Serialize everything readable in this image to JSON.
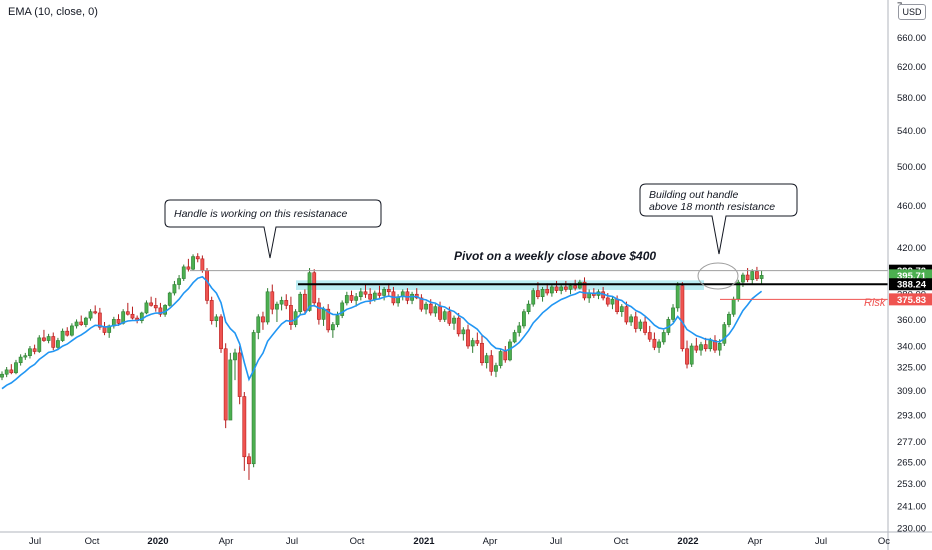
{
  "indicator_label": "EMA (10, close, 0)",
  "currency": "USD",
  "colors": {
    "up": "#26a69a",
    "up_fill": "#4caf50",
    "down": "#ef5350",
    "ema": "#2196f3",
    "axis_text": "#131722",
    "grid": "#e0e3eb",
    "zone": "#b2ebf2",
    "risk": "#ef5350"
  },
  "annotations": {
    "left_callout": "Handle is working on this resistanace",
    "right_callout_line1": "Building out handle",
    "right_callout_line2": "above 18 month resistance",
    "pivot_text": "Pivot on a weekly close above $400",
    "risk_text": "Risk"
  },
  "chart_data": {
    "type": "candlestick",
    "y_scale": "log",
    "ylim": [
      228,
      715
    ],
    "y_ticks": [
      230.0,
      241.0,
      253.0,
      265.0,
      277.0,
      293.0,
      309.0,
      325.0,
      340.0,
      360.0,
      380.0,
      400.0,
      420.0,
      460.0,
      500.0,
      540.0,
      580.0,
      620.0,
      660.0
    ],
    "y_top_tick_partial": "7",
    "x_ticks": [
      "Jul",
      "Oct",
      "2020",
      "Apr",
      "Jul",
      "Oct",
      "2021",
      "Apr",
      "Jul",
      "Oct",
      "2022",
      "Apr",
      "Jul",
      "Oc"
    ],
    "x_ticks_bold": [
      "2020",
      "2021",
      "2022"
    ],
    "price_labels": [
      {
        "value": "399.72",
        "kind": "black"
      },
      {
        "value": "395.71",
        "kind": "green"
      },
      {
        "value": "388.24",
        "kind": "black"
      },
      {
        "value": "375.83",
        "kind": "red"
      }
    ],
    "levels": {
      "pivot": 399.72,
      "resistance": 388.24,
      "risk": 375.83,
      "last_close": 395.71,
      "zone": [
        383.5,
        391.5
      ]
    },
    "candles": [
      [
        318,
        322,
        316,
        320
      ],
      [
        320,
        325,
        318,
        323
      ],
      [
        323,
        327,
        320,
        321
      ],
      [
        321,
        330,
        320,
        328
      ],
      [
        328,
        334,
        326,
        332
      ],
      [
        332,
        335,
        330,
        333
      ],
      [
        333,
        340,
        331,
        338
      ],
      [
        338,
        341,
        334,
        336
      ],
      [
        336,
        348,
        335,
        346
      ],
      [
        346,
        352,
        343,
        344
      ],
      [
        344,
        349,
        342,
        347
      ],
      [
        347,
        350,
        337,
        339
      ],
      [
        339,
        346,
        337,
        344
      ],
      [
        344,
        353,
        343,
        351
      ],
      [
        351,
        354,
        347,
        348
      ],
      [
        348,
        357,
        347,
        355
      ],
      [
        355,
        360,
        353,
        358
      ],
      [
        358,
        363,
        355,
        356
      ],
      [
        356,
        362,
        354,
        361
      ],
      [
        361,
        368,
        359,
        366
      ],
      [
        366,
        371,
        364,
        365
      ],
      [
        365,
        369,
        352,
        354
      ],
      [
        354,
        358,
        348,
        350
      ],
      [
        350,
        356,
        346,
        355
      ],
      [
        355,
        362,
        353,
        360
      ],
      [
        360,
        364,
        355,
        357
      ],
      [
        357,
        368,
        356,
        366
      ],
      [
        366,
        373,
        363,
        364
      ],
      [
        364,
        370,
        360,
        361
      ],
      [
        361,
        363,
        357,
        359
      ],
      [
        359,
        366,
        357,
        365
      ],
      [
        365,
        375,
        364,
        373
      ],
      [
        373,
        378,
        370,
        371
      ],
      [
        371,
        377,
        366,
        369
      ],
      [
        369,
        373,
        362,
        364
      ],
      [
        364,
        372,
        362,
        371
      ],
      [
        371,
        382,
        370,
        381
      ],
      [
        381,
        391,
        379,
        388
      ],
      [
        388,
        396,
        384,
        393
      ],
      [
        393,
        405,
        391,
        403
      ],
      [
        403,
        410,
        399,
        401
      ],
      [
        401,
        414,
        400,
        412
      ],
      [
        412,
        415,
        407,
        410
      ],
      [
        410,
        413,
        398,
        400
      ],
      [
        400,
        402,
        372,
        375
      ],
      [
        375,
        378,
        356,
        359
      ],
      [
        359,
        364,
        354,
        362
      ],
      [
        362,
        364,
        335,
        338
      ],
      [
        338,
        342,
        285,
        290
      ],
      [
        290,
        335,
        290,
        330
      ],
      [
        330,
        338,
        316,
        335
      ],
      [
        335,
        340,
        300,
        305
      ],
      [
        305,
        308,
        260,
        268
      ],
      [
        268,
        270,
        255,
        264
      ],
      [
        264,
        352,
        262,
        350
      ],
      [
        350,
        364,
        345,
        362
      ],
      [
        362,
        366,
        352,
        358
      ],
      [
        358,
        385,
        356,
        382
      ],
      [
        382,
        388,
        364,
        368
      ],
      [
        368,
        374,
        358,
        372
      ],
      [
        372,
        378,
        367,
        375
      ],
      [
        375,
        380,
        368,
        371
      ],
      [
        371,
        378,
        352,
        356
      ],
      [
        356,
        368,
        354,
        366
      ],
      [
        366,
        382,
        364,
        380
      ],
      [
        380,
        384,
        364,
        367
      ],
      [
        367,
        402,
        366,
        398
      ],
      [
        398,
        401,
        370,
        373
      ],
      [
        373,
        377,
        356,
        360
      ],
      [
        360,
        370,
        355,
        368
      ],
      [
        368,
        372,
        350,
        352
      ],
      [
        352,
        358,
        346,
        356
      ],
      [
        356,
        366,
        354,
        363
      ],
      [
        363,
        375,
        361,
        373
      ],
      [
        373,
        382,
        371,
        379
      ],
      [
        379,
        383,
        373,
        375
      ],
      [
        375,
        381,
        370,
        378
      ],
      [
        378,
        385,
        375,
        382
      ],
      [
        382,
        388,
        377,
        380
      ],
      [
        380,
        385,
        372,
        376
      ],
      [
        376,
        383,
        374,
        381
      ],
      [
        381,
        387,
        377,
        379
      ],
      [
        379,
        386,
        375,
        384
      ],
      [
        384,
        389,
        378,
        382
      ],
      [
        382,
        386,
        371,
        373
      ],
      [
        373,
        380,
        370,
        378
      ],
      [
        378,
        384,
        375,
        382
      ],
      [
        382,
        385,
        372,
        375
      ],
      [
        375,
        382,
        372,
        380
      ],
      [
        380,
        385,
        376,
        377
      ],
      [
        377,
        380,
        366,
        368
      ],
      [
        368,
        374,
        364,
        372
      ],
      [
        372,
        376,
        363,
        365
      ],
      [
        365,
        372,
        362,
        370
      ],
      [
        370,
        374,
        358,
        360
      ],
      [
        360,
        368,
        358,
        366
      ],
      [
        366,
        370,
        355,
        357
      ],
      [
        357,
        363,
        352,
        361
      ],
      [
        361,
        365,
        347,
        349
      ],
      [
        349,
        354,
        344,
        352
      ],
      [
        352,
        356,
        338,
        340
      ],
      [
        340,
        346,
        335,
        344
      ],
      [
        344,
        350,
        340,
        342
      ],
      [
        342,
        348,
        326,
        328
      ],
      [
        328,
        335,
        324,
        333
      ],
      [
        333,
        337,
        319,
        322
      ],
      [
        322,
        328,
        318,
        326
      ],
      [
        326,
        338,
        324,
        336
      ],
      [
        336,
        340,
        328,
        330
      ],
      [
        330,
        345,
        329,
        343
      ],
      [
        343,
        352,
        342,
        350
      ],
      [
        350,
        358,
        347,
        355
      ],
      [
        355,
        368,
        353,
        366
      ],
      [
        366,
        375,
        364,
        372
      ],
      [
        372,
        385,
        370,
        383
      ],
      [
        383,
        390,
        376,
        378
      ],
      [
        378,
        386,
        374,
        384
      ],
      [
        384,
        389,
        379,
        381
      ],
      [
        381,
        388,
        378,
        386
      ],
      [
        386,
        391,
        381,
        383
      ],
      [
        383,
        388,
        380,
        386
      ],
      [
        386,
        391,
        382,
        384
      ],
      [
        384,
        389,
        380,
        387
      ],
      [
        387,
        392,
        383,
        385
      ],
      [
        385,
        392,
        384,
        390
      ],
      [
        390,
        394,
        375,
        377
      ],
      [
        377,
        384,
        373,
        381
      ],
      [
        381,
        385,
        377,
        379
      ],
      [
        379,
        384,
        376,
        382
      ],
      [
        382,
        386,
        375,
        377
      ],
      [
        377,
        381,
        370,
        372
      ],
      [
        372,
        378,
        368,
        376
      ],
      [
        376,
        379,
        364,
        366
      ],
      [
        366,
        372,
        362,
        370
      ],
      [
        370,
        374,
        356,
        358
      ],
      [
        358,
        364,
        355,
        362
      ],
      [
        362,
        366,
        350,
        353
      ],
      [
        353,
        360,
        351,
        358
      ],
      [
        358,
        362,
        348,
        350
      ],
      [
        350,
        355,
        343,
        345
      ],
      [
        345,
        350,
        337,
        339
      ],
      [
        339,
        345,
        335,
        343
      ],
      [
        343,
        352,
        341,
        350
      ],
      [
        350,
        362,
        348,
        360
      ],
      [
        360,
        372,
        358,
        369
      ],
      [
        369,
        390,
        366,
        387
      ],
      [
        387,
        390,
        336,
        338
      ],
      [
        338,
        344,
        324,
        327
      ],
      [
        327,
        342,
        325,
        340
      ],
      [
        340,
        346,
        335,
        337
      ],
      [
        337,
        343,
        333,
        341
      ],
      [
        341,
        346,
        336,
        338
      ],
      [
        338,
        346,
        336,
        344
      ],
      [
        344,
        348,
        335,
        337
      ],
      [
        337,
        345,
        333,
        342
      ],
      [
        342,
        358,
        340,
        356
      ],
      [
        356,
        366,
        354,
        364
      ],
      [
        364,
        378,
        362,
        376
      ],
      [
        376,
        392,
        374,
        390
      ],
      [
        390,
        398,
        386,
        396
      ],
      [
        396,
        402,
        390,
        392
      ],
      [
        392,
        401,
        388,
        399
      ],
      [
        399,
        403,
        391,
        393
      ],
      [
        393,
        400,
        388,
        395.71
      ]
    ]
  }
}
